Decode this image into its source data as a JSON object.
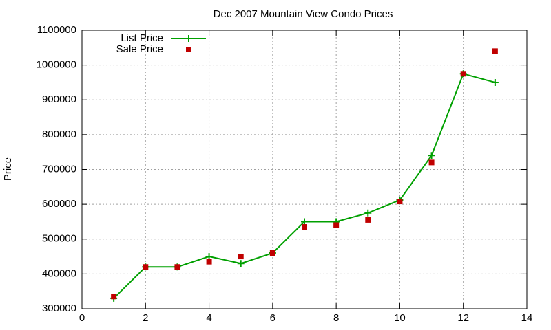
{
  "chart_data": {
    "type": "line",
    "title": "Dec 2007 Mountain View Condo Prices",
    "y_label": "Price",
    "x": [
      1,
      2,
      3,
      4,
      5,
      6,
      7,
      8,
      9,
      10,
      11,
      12,
      13
    ],
    "series": [
      {
        "name": "List Price",
        "color": "#00a000",
        "line": true,
        "marker": "plus",
        "values": [
          330000,
          420000,
          420000,
          450000,
          430000,
          460000,
          550000,
          550000,
          575000,
          612000,
          740000,
          975000,
          950000
        ]
      },
      {
        "name": "Sale Price",
        "color": "#c00000",
        "line": false,
        "marker": "square",
        "values": [
          335000,
          420000,
          420000,
          435000,
          450000,
          460000,
          535000,
          540000,
          555000,
          608000,
          720000,
          975000,
          1040000
        ]
      }
    ],
    "xlim": [
      0,
      14
    ],
    "xticks": [
      0,
      2,
      4,
      6,
      8,
      10,
      12,
      14
    ],
    "ylim": [
      300000,
      1100000
    ],
    "yticks": [
      300000,
      400000,
      500000,
      600000,
      700000,
      800000,
      900000,
      1000000,
      1100000
    ],
    "grid": true,
    "legend": "top-left"
  }
}
